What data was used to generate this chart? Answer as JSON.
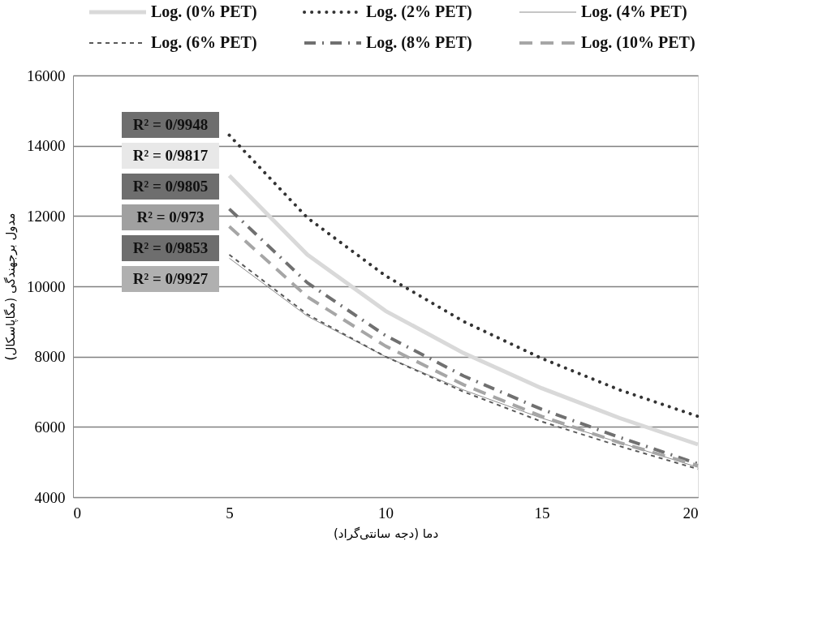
{
  "chart_data": {
    "type": "line",
    "xlabel": "دما (دجه سانتی‌گراد)",
    "ylabel": "مدول برجهندگی (مگاپاسکال)",
    "x": [
      5,
      7.5,
      10,
      12.5,
      15,
      17.5,
      20
    ],
    "series": [
      {
        "name": "Log. (0% PET)",
        "color": "#d9d9d9",
        "line_style": "solid",
        "values": [
          13150,
          10900,
          9300,
          8100,
          7100,
          6250,
          5500
        ]
      },
      {
        "name": "Log. (2% PET)",
        "color": "#333333",
        "line_style": "dotted",
        "values": [
          14300,
          11950,
          10300,
          9000,
          7950,
          7050,
          6300
        ]
      },
      {
        "name": "Log. (4% PET)",
        "color": "#8c8c8c",
        "line_style": "solid",
        "values": [
          10800,
          9150,
          8000,
          7050,
          6250,
          5550,
          4850
        ]
      },
      {
        "name": "Log. (6% PET)",
        "color": "#595959",
        "line_style": "dashed",
        "values": [
          10900,
          9200,
          8000,
          7000,
          6150,
          5450,
          4800
        ]
      },
      {
        "name": "Log. (8% PET)",
        "color": "#707070",
        "line_style": "dashed",
        "values": [
          12200,
          10100,
          8600,
          7450,
          6500,
          5700,
          4950
        ]
      },
      {
        "name": "Log. (10% PET)",
        "color": "#a6a6a6",
        "line_style": "dashed",
        "values": [
          11700,
          9700,
          8300,
          7200,
          6300,
          5550,
          4900
        ]
      }
    ],
    "annotations": [
      "R² = 0/9948",
      "R² = 0/9817",
      "R² = 0/9805",
      "R² = 0/973",
      "R² = 0/9853",
      "R² = 0/9927"
    ],
    "xlim": [
      0,
      20
    ],
    "xticks": [
      0,
      5,
      10,
      15,
      20
    ],
    "ylim": [
      4000,
      16000
    ],
    "yticks": [
      4000,
      6000,
      8000,
      10000,
      12000,
      14000,
      16000
    ],
    "grid": "y",
    "legend": "top",
    "marker": "none"
  }
}
